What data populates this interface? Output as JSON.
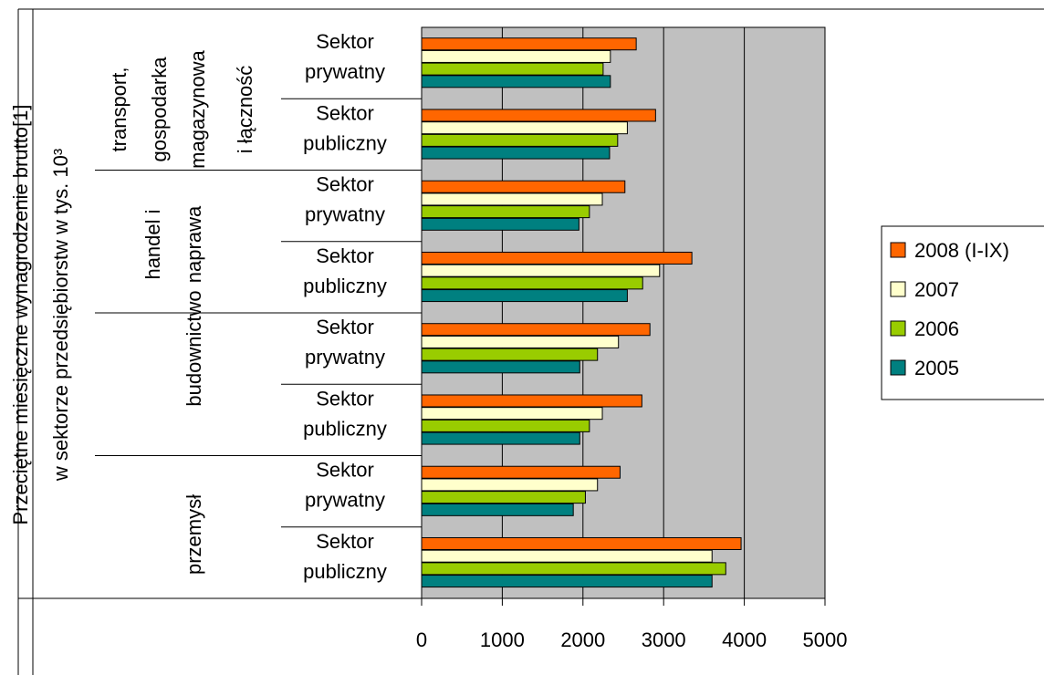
{
  "chart_data": {
    "type": "bar",
    "orientation": "horizontal",
    "ylabel": [
      "Przeciętne miesięczne wynagrodzenie brutto[1]",
      "w sektorze przedsiębiorstw w tys. 10³"
    ],
    "xlim": [
      0,
      5000
    ],
    "xticks": [
      "0",
      "1000",
      "2000",
      "3000",
      "4000",
      "5000"
    ],
    "grid": true,
    "legend_position": "right",
    "groups": [
      {
        "lines": [
          "transport,",
          "gospodarka",
          "magazynowa",
          "i łączność"
        ]
      },
      {
        "lines": [
          "handel i",
          "naprawa"
        ]
      },
      {
        "lines": [
          "budownictwo"
        ]
      },
      {
        "lines": [
          "przemysł"
        ]
      }
    ],
    "categories": [
      {
        "lines": [
          "Sektor",
          "prywatny"
        ],
        "group": 0
      },
      {
        "lines": [
          "Sektor",
          "publiczny"
        ],
        "group": 0
      },
      {
        "lines": [
          "Sektor",
          "prywatny"
        ],
        "group": 1
      },
      {
        "lines": [
          "Sektor",
          "publiczny"
        ],
        "group": 1
      },
      {
        "lines": [
          "Sektor",
          "prywatny"
        ],
        "group": 2
      },
      {
        "lines": [
          "Sektor",
          "publiczny"
        ],
        "group": 2
      },
      {
        "lines": [
          "Sektor",
          "prywatny"
        ],
        "group": 3
      },
      {
        "lines": [
          "Sektor",
          "publiczny"
        ],
        "group": 3
      }
    ],
    "series": [
      {
        "name": "2008 (I-IX)",
        "color": "#FF6600",
        "values": [
          2660,
          2900,
          2520,
          3350,
          2830,
          2730,
          2460,
          3960
        ]
      },
      {
        "name": "2007",
        "color": "#FFFFCC",
        "values": [
          2340,
          2550,
          2240,
          2950,
          2440,
          2240,
          2180,
          3600
        ]
      },
      {
        "name": "2006",
        "color": "#99CC00",
        "values": [
          2250,
          2430,
          2080,
          2740,
          2180,
          2080,
          2030,
          3770
        ]
      },
      {
        "name": "2005",
        "color": "#008080",
        "values": [
          2340,
          2330,
          1950,
          2550,
          1960,
          1960,
          1880,
          3600
        ]
      }
    ]
  },
  "colors": {
    "plot_background": "#C0C0C0",
    "gridline": "#000000",
    "bar_border": "#000000"
  }
}
